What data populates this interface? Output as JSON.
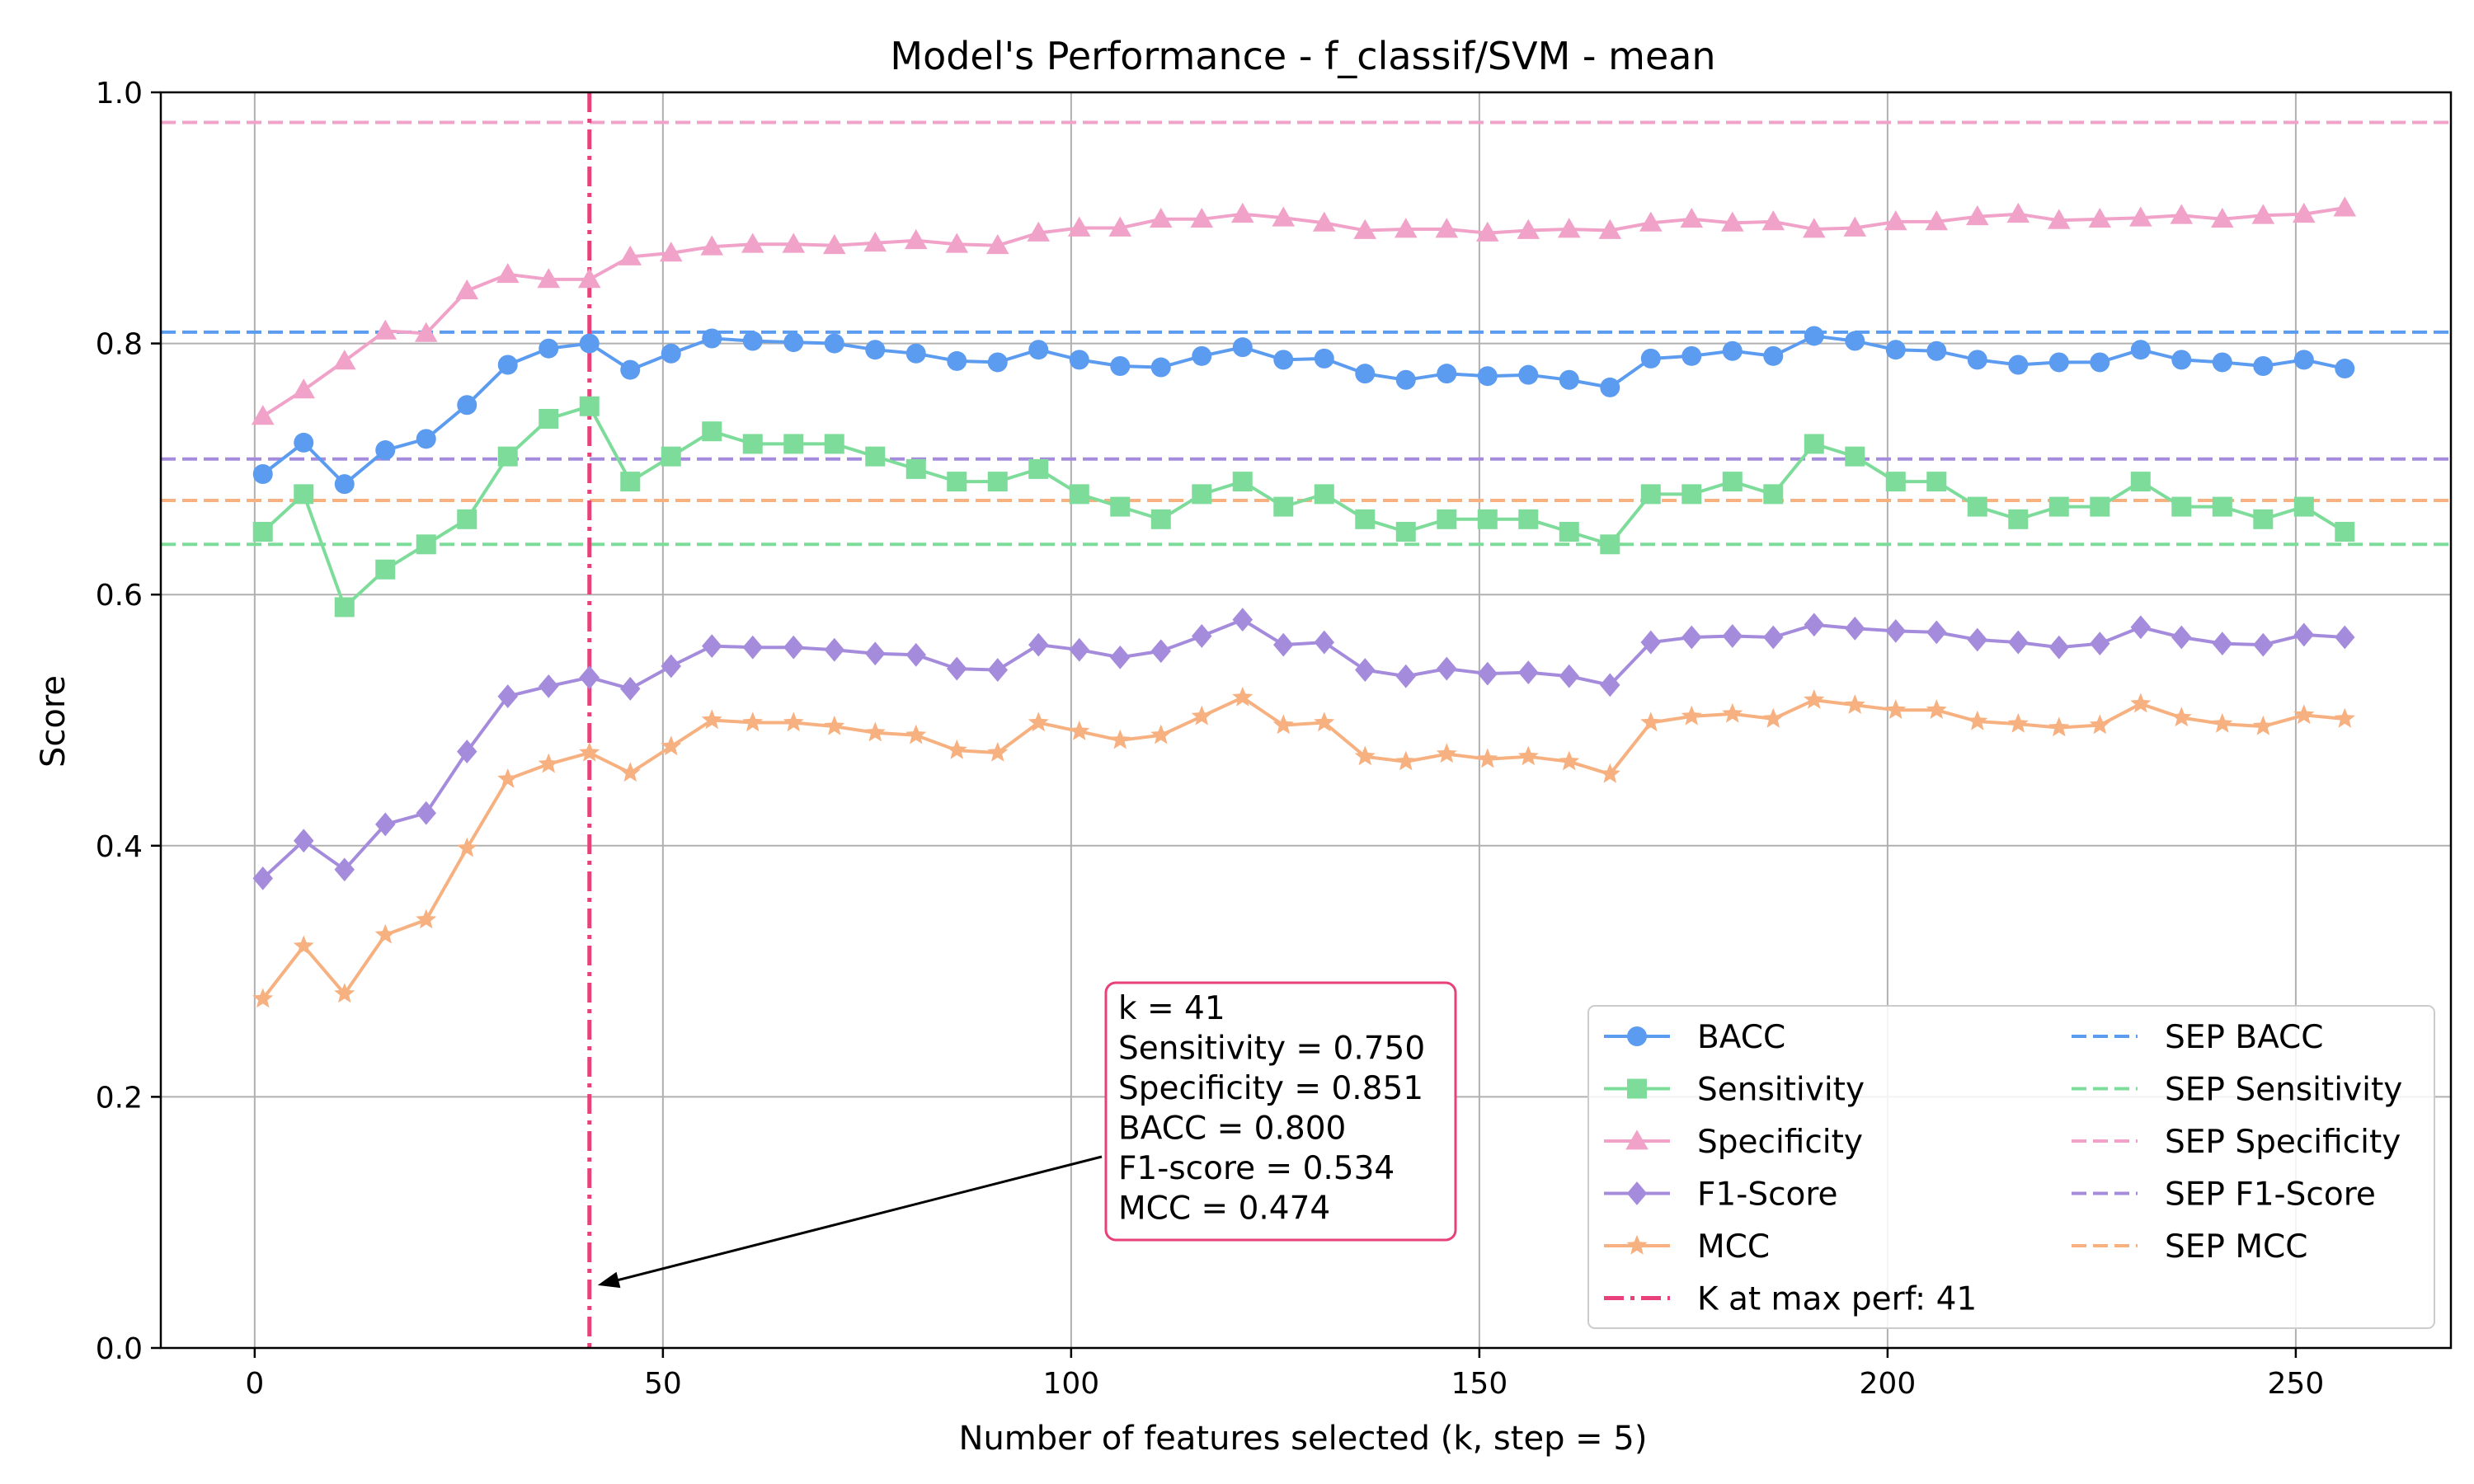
{
  "chart_data": {
    "type": "line",
    "title": "Model's Performance - f_classif/SVM - mean",
    "xlabel": "Number of features selected (k, step = 5)",
    "ylabel": "Score",
    "xlim": [
      -11.5,
      269
    ],
    "ylim": [
      0.0,
      1.0
    ],
    "xticks": [
      0,
      50,
      100,
      150,
      200,
      250
    ],
    "yticks": [
      0.0,
      0.2,
      0.4,
      0.6,
      0.8,
      1.0
    ],
    "grid": true,
    "legend_position": "lower-right",
    "x": [
      1,
      6,
      11,
      16,
      21,
      26,
      31,
      36,
      41,
      46,
      51,
      56,
      61,
      66,
      71,
      76,
      81,
      86,
      91,
      96,
      101,
      106,
      111,
      116,
      121,
      126,
      131,
      136,
      141,
      146,
      151,
      156,
      161,
      166,
      171,
      176,
      181,
      186,
      191,
      196,
      201,
      206,
      211,
      216,
      221,
      226,
      231,
      236,
      241,
      246,
      251,
      256
    ],
    "series": [
      {
        "name": "BACC",
        "color": "#5b9bf0",
        "marker": "circle",
        "values": [
          0.696,
          0.721,
          0.688,
          0.715,
          0.724,
          0.751,
          0.783,
          0.796,
          0.8,
          0.779,
          0.792,
          0.804,
          0.802,
          0.801,
          0.8,
          0.795,
          0.792,
          0.786,
          0.785,
          0.795,
          0.787,
          0.782,
          0.781,
          0.79,
          0.797,
          0.787,
          0.788,
          0.776,
          0.771,
          0.776,
          0.774,
          0.775,
          0.771,
          0.765,
          0.788,
          0.79,
          0.794,
          0.79,
          0.806,
          0.802,
          0.795,
          0.794,
          0.787,
          0.783,
          0.785,
          0.785,
          0.795,
          0.787,
          0.785,
          0.782,
          0.787,
          0.78
        ]
      },
      {
        "name": "Sensitivity",
        "color": "#7ddc9a",
        "marker": "square",
        "values": [
          0.65,
          0.68,
          0.59,
          0.62,
          0.64,
          0.66,
          0.71,
          0.74,
          0.75,
          0.69,
          0.71,
          0.73,
          0.72,
          0.72,
          0.72,
          0.71,
          0.7,
          0.69,
          0.69,
          0.7,
          0.68,
          0.67,
          0.66,
          0.68,
          0.69,
          0.67,
          0.68,
          0.66,
          0.65,
          0.66,
          0.66,
          0.66,
          0.65,
          0.64,
          0.68,
          0.68,
          0.69,
          0.68,
          0.72,
          0.71,
          0.69,
          0.69,
          0.67,
          0.66,
          0.67,
          0.67,
          0.69,
          0.67,
          0.67,
          0.66,
          0.67,
          0.65
        ]
      },
      {
        "name": "Specificity",
        "color": "#f0a2c8",
        "marker": "triangle",
        "values": [
          0.742,
          0.763,
          0.786,
          0.81,
          0.808,
          0.842,
          0.855,
          0.851,
          0.851,
          0.869,
          0.872,
          0.877,
          0.879,
          0.879,
          0.878,
          0.88,
          0.882,
          0.879,
          0.878,
          0.888,
          0.892,
          0.892,
          0.899,
          0.899,
          0.903,
          0.9,
          0.896,
          0.89,
          0.891,
          0.891,
          0.888,
          0.89,
          0.891,
          0.89,
          0.896,
          0.899,
          0.896,
          0.897,
          0.891,
          0.892,
          0.897,
          0.897,
          0.901,
          0.903,
          0.898,
          0.899,
          0.9,
          0.902,
          0.899,
          0.902,
          0.903,
          0.908
        ]
      },
      {
        "name": "F1-Score",
        "color": "#a58bdc",
        "marker": "diamond",
        "values": [
          0.374,
          0.404,
          0.381,
          0.417,
          0.426,
          0.475,
          0.519,
          0.527,
          0.534,
          0.525,
          0.543,
          0.559,
          0.558,
          0.558,
          0.556,
          0.553,
          0.552,
          0.541,
          0.54,
          0.56,
          0.556,
          0.55,
          0.555,
          0.567,
          0.58,
          0.56,
          0.562,
          0.54,
          0.535,
          0.541,
          0.537,
          0.538,
          0.535,
          0.528,
          0.562,
          0.566,
          0.567,
          0.566,
          0.576,
          0.573,
          0.571,
          0.57,
          0.564,
          0.562,
          0.558,
          0.561,
          0.574,
          0.566,
          0.561,
          0.56,
          0.568,
          0.566
        ]
      },
      {
        "name": "MCC",
        "color": "#f7b07f",
        "marker": "star",
        "values": [
          0.278,
          0.32,
          0.282,
          0.329,
          0.341,
          0.398,
          0.453,
          0.465,
          0.474,
          0.458,
          0.479,
          0.5,
          0.498,
          0.498,
          0.495,
          0.49,
          0.488,
          0.476,
          0.474,
          0.498,
          0.491,
          0.484,
          0.488,
          0.503,
          0.518,
          0.496,
          0.498,
          0.471,
          0.467,
          0.473,
          0.469,
          0.471,
          0.467,
          0.457,
          0.498,
          0.503,
          0.505,
          0.501,
          0.516,
          0.512,
          0.508,
          0.508,
          0.499,
          0.497,
          0.494,
          0.496,
          0.513,
          0.502,
          0.497,
          0.495,
          0.504,
          0.501
        ]
      }
    ],
    "reference_lines": [
      {
        "name": "SEP BACC",
        "color": "#5b9bf0",
        "value": 0.809
      },
      {
        "name": "SEP Sensitivity",
        "color": "#7ddc9a",
        "value": 0.64
      },
      {
        "name": "SEP Specificity",
        "color": "#f0a2c8",
        "value": 0.976
      },
      {
        "name": "SEP F1-Score",
        "color": "#a58bdc",
        "value": 0.708
      },
      {
        "name": "SEP MCC",
        "color": "#f7b07f",
        "value": 0.675
      }
    ],
    "vertical_line": {
      "name": "K at max perf: 41",
      "color": "#e8407a",
      "value": 41
    },
    "annotation": {
      "lines": [
        "k = 41",
        "Sensitivity = 0.750",
        "Specificity = 0.851",
        "BACC = 0.800",
        "F1-score = 0.534",
        "MCC = 0.474"
      ],
      "target_x": 41,
      "target_y": 0.05,
      "border_color": "#e8407a"
    },
    "legend_entries": [
      "BACC",
      "Sensitivity",
      "Specificity",
      "F1-Score",
      "MCC",
      "K at max perf: 41",
      "SEP BACC",
      "SEP Sensitivity",
      "SEP Specificity",
      "SEP F1-Score",
      "SEP MCC"
    ]
  }
}
